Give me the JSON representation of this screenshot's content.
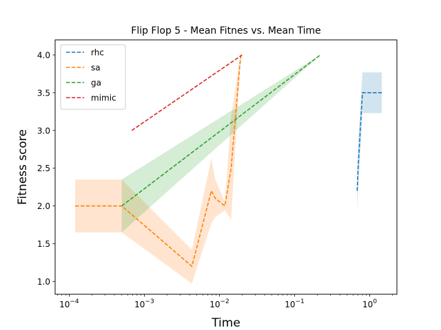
{
  "chart_data": {
    "type": "line",
    "title": "Flip Flop 5 - Mean Fitnes vs. Mean Time",
    "xlabel": "Time",
    "ylabel": "Fitness score",
    "xscale": "log",
    "xlim": [
      6.5e-05,
      2.3
    ],
    "ylim": [
      0.83,
      4.2
    ],
    "x_ticks": [
      0.0001,
      0.001,
      0.01,
      0.1,
      1
    ],
    "x_tick_labels": [
      {
        "base": "10",
        "exp": "−4"
      },
      {
        "base": "10",
        "exp": "−3"
      },
      {
        "base": "10",
        "exp": "−2"
      },
      {
        "base": "10",
        "exp": "−1"
      },
      {
        "base": "10",
        "exp": "0"
      }
    ],
    "y_ticks": [
      "1.0",
      "1.5",
      "2.0",
      "2.5",
      "3.0",
      "3.5",
      "4.0"
    ],
    "grid": false,
    "legend_position": "top-left",
    "series": [
      {
        "name": "rhc",
        "color": "#1f77b4",
        "x": [
          0.68,
          0.7,
          0.8,
          1.0,
          1.45
        ],
        "y": [
          2.2,
          2.5,
          3.5,
          3.5,
          3.5
        ],
        "band": {
          "x": [
            0.68,
            0.7,
            0.8,
            1.0,
            1.45
          ],
          "lower": [
            1.95,
            2.2,
            3.23,
            3.23,
            3.23
          ],
          "upper": [
            2.45,
            2.8,
            3.77,
            3.77,
            3.77
          ]
        }
      },
      {
        "name": "sa",
        "color": "#ff7f0e",
        "x": [
          0.00012,
          0.0005,
          0.0043,
          0.0078,
          0.0088,
          0.0118,
          0.0143,
          0.0186,
          0.0194
        ],
        "y": [
          2.0,
          2.0,
          1.2,
          2.2,
          2.1,
          2.0,
          2.5,
          3.85,
          4.0
        ],
        "band": {
          "x": [
            0.00012,
            0.0005,
            0.0043,
            0.0078,
            0.0088,
            0.0118,
            0.0143,
            0.0186,
            0.0194
          ],
          "lower": [
            1.65,
            1.65,
            0.97,
            1.77,
            1.85,
            1.94,
            1.82,
            3.75,
            4.0
          ],
          "upper": [
            2.35,
            2.35,
            1.42,
            2.63,
            2.35,
            2.06,
            3.18,
            3.95,
            4.0
          ]
        }
      },
      {
        "name": "ga",
        "color": "#2ca02c",
        "x": [
          0.0005,
          0.22
        ],
        "y": [
          2.0,
          4.0
        ],
        "band": {
          "x": [
            0.0005,
            0.22
          ],
          "lower": [
            1.65,
            4.0
          ],
          "upper": [
            2.35,
            4.0
          ]
        }
      },
      {
        "name": "mimic",
        "color": "#d62728",
        "x": [
          0.00068,
          0.02
        ],
        "y": [
          3.0,
          4.0
        ]
      }
    ]
  }
}
